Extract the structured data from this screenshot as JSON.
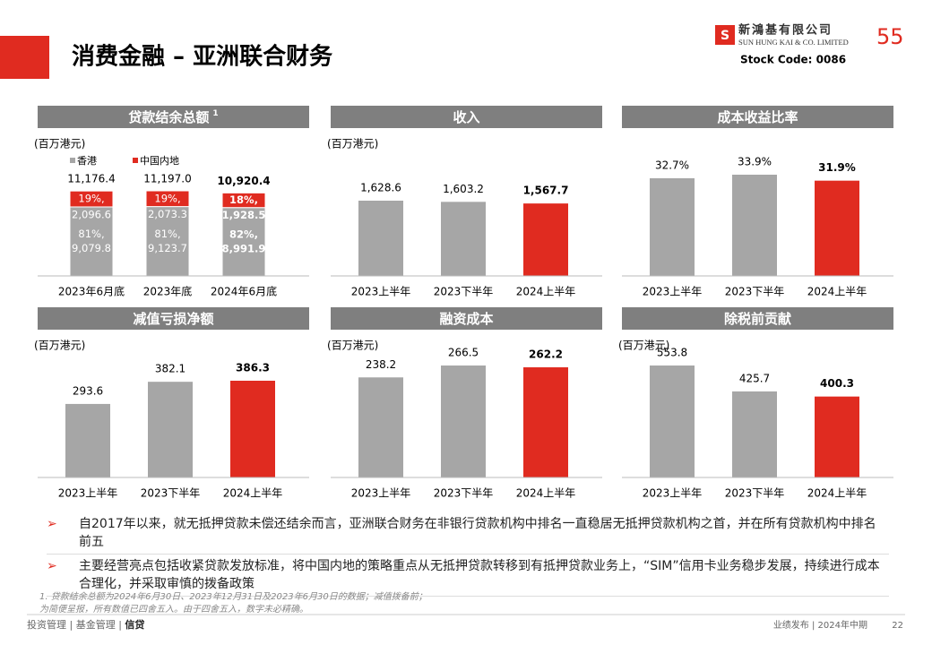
{
  "title": "消费金融 – 亚洲联合财务",
  "logo": {
    "name_cn": "新鴻基有限公司",
    "name_en": "SUN HUNG KAI & CO. LIMITED",
    "badge": "55",
    "stock_code": "Stock Code: 0086"
  },
  "chart_data": [
    {
      "type": "stacked_bar",
      "title": "贷款结余总额",
      "title_note": "1",
      "unit": "(百万港元)",
      "categories": [
        "2023年6月底",
        "2023年底",
        "2024年6月底"
      ],
      "totals": [
        11176.4,
        11197.0,
        10920.4
      ],
      "total_labels": [
        "11,176.4",
        "11,197.0",
        "10,920.4"
      ],
      "series": [
        {
          "name": "香港",
          "color": "#a6a6a6",
          "values": [
            9079.8,
            9123.7,
            8991.9
          ],
          "value_labels": [
            "9,079.8",
            "9,123.7",
            "8,991.9"
          ],
          "shares": [
            81,
            81,
            82
          ],
          "share_labels": [
            "81%,",
            "81%,",
            "82%,"
          ]
        },
        {
          "name": "中国内地",
          "color": "#e02b20",
          "values": [
            2096.6,
            2073.3,
            1928.5
          ],
          "value_labels": [
            "2,096.6",
            "2,073.3",
            "1,928.5"
          ],
          "shares": [
            19,
            19,
            18
          ],
          "share_labels": [
            "19%,",
            "19%,",
            "18%,"
          ]
        }
      ]
    },
    {
      "type": "bar",
      "title": "收入",
      "unit": "(百万港元)",
      "categories": [
        "2023上半年",
        "2023下半年",
        "2024上半年"
      ],
      "values": [
        1628.6,
        1603.2,
        1567.7
      ],
      "value_labels": [
        "1,628.6",
        "1,603.2",
        "1,567.7"
      ],
      "colors": [
        "#a6a6a6",
        "#a6a6a6",
        "#e02b20"
      ]
    },
    {
      "type": "bar",
      "title": "成本收益比率",
      "categories": [
        "2023上半年",
        "2023下半年",
        "2024上半年"
      ],
      "values": [
        32.7,
        33.9,
        31.9
      ],
      "value_labels": [
        "32.7%",
        "33.9%",
        "31.9%"
      ],
      "colors": [
        "#a6a6a6",
        "#a6a6a6",
        "#e02b20"
      ]
    },
    {
      "type": "bar",
      "title": "减值亏损净额",
      "unit": "(百万港元)",
      "categories": [
        "2023上半年",
        "2023下半年",
        "2024上半年"
      ],
      "values": [
        293.6,
        382.1,
        386.3
      ],
      "colors": [
        "#a6a6a6",
        "#a6a6a6",
        "#e02b20"
      ]
    },
    {
      "type": "bar",
      "title": "融资成本",
      "unit": "(百万港元)",
      "categories": [
        "2023上半年",
        "2023下半年",
        "2024上半年"
      ],
      "values": [
        238.2,
        266.5,
        262.2
      ],
      "colors": [
        "#a6a6a6",
        "#a6a6a6",
        "#e02b20"
      ]
    },
    {
      "type": "bar",
      "title": "除税前贡献",
      "unit": "(百万港元)",
      "categories": [
        "2023上半年",
        "2023下半年",
        "2024上半年"
      ],
      "values": [
        553.8,
        425.7,
        400.3
      ],
      "colors": [
        "#a6a6a6",
        "#a6a6a6",
        "#e02b20"
      ]
    }
  ],
  "bullets": [
    "自2017年以来，就无抵押贷款未偿还结余而言，亚洲联合财务在非银行贷款机构中排名一直稳居无抵押贷款机构之首，并在所有贷款机构中排名前五",
    "主要经营亮点包括收紧贷款发放标准，将中国内地的策略重点从无抵押贷款转移到有抵押贷款业务上，“SIM”信用卡业务稳步发展，持续进行成本合理化，并采取审慎的拨备政策"
  ],
  "footnotes": [
    "1. 贷款结余总额为2024年6月30日、2023年12月31日及2023年6月30日的数据；减值拨备前；",
    "为简便呈报，所有数值已四舍五入。由于四舍五入，数字未必精确。"
  ],
  "footer": {
    "sections": [
      "投资管理",
      "基金管理",
      "信贷"
    ],
    "right": "业绩发布 | 2024年中期",
    "page": "22"
  }
}
